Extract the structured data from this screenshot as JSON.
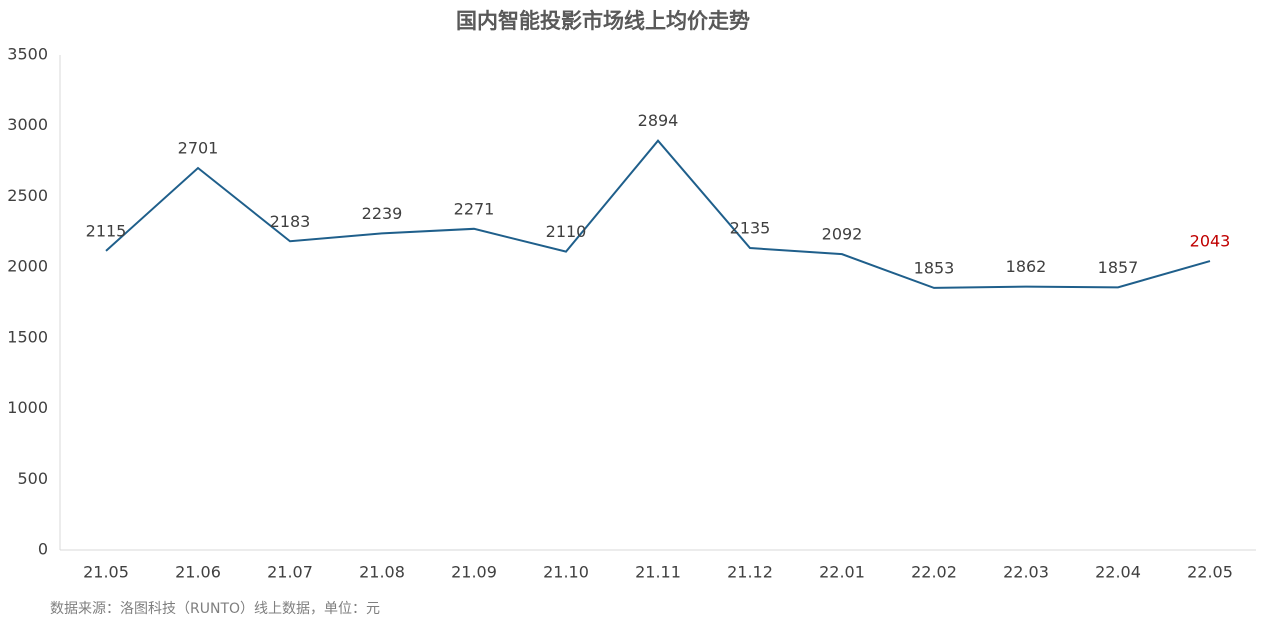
{
  "chart_data": {
    "type": "line",
    "title": "国内智能投影市场线上均价走势",
    "categories": [
      "21.05",
      "21.06",
      "21.07",
      "21.08",
      "21.09",
      "21.10",
      "21.11",
      "21.12",
      "22.01",
      "22.02",
      "22.03",
      "22.04",
      "22.05"
    ],
    "series": [
      {
        "color": "#1f5f8b",
        "values": [
          2115,
          2701,
          2183,
          2239,
          2271,
          2110,
          2894,
          2135,
          2092,
          1853,
          1862,
          1857,
          2043
        ]
      }
    ],
    "value_label_colors": [
      "#404040",
      "#404040",
      "#404040",
      "#404040",
      "#404040",
      "#404040",
      "#404040",
      "#404040",
      "#404040",
      "#404040",
      "#404040",
      "#404040",
      "#c00000"
    ],
    "ylim": [
      0,
      3500
    ],
    "yticks": [
      0,
      500,
      1000,
      1500,
      2000,
      2500,
      3000,
      3500
    ],
    "grid": false,
    "source": "数据来源：洛图科技（RUNTO）线上数据，单位：元"
  }
}
